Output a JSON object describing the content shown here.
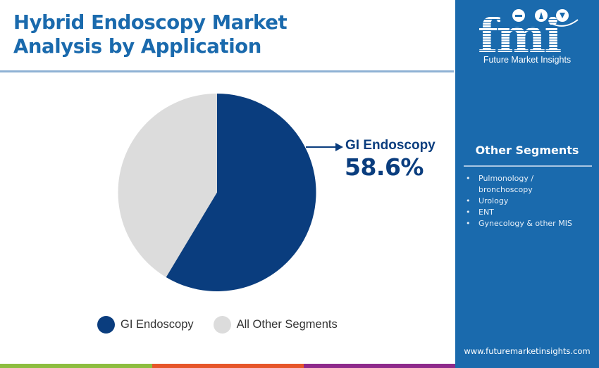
{
  "header": {
    "title_line1": "Hybrid Endoscopy Market",
    "title_line2": "Analysis by Application"
  },
  "callout": {
    "label": "GI Endoscopy",
    "value": "58.6%"
  },
  "legend": [
    {
      "label": "GI Endoscopy",
      "color": "#0a3d7e"
    },
    {
      "label": "All Other Segments",
      "color": "#dcdcdc"
    }
  ],
  "sidebar": {
    "logo_text": "fmi",
    "logo_subtitle": "Future Market Insights",
    "other_segments_title": "Other Segments",
    "other_segments": [
      "Pulmonology / bronchoscopy",
      "Urology",
      "ENT",
      "Gynecology & other MIS"
    ],
    "website": "www.futuremarketinsights.com"
  },
  "colors": {
    "title": "#1a6aad",
    "primary_slice": "#0a3d7e",
    "secondary_slice": "#dcdcdc",
    "sidebar_bg": "#1a6aad",
    "strip": [
      "#8dbd3f",
      "#e6562a",
      "#8e2a8b"
    ]
  },
  "chart_data": {
    "type": "pie",
    "title": "Hybrid Endoscopy Market Analysis by Application",
    "categories": [
      "GI Endoscopy",
      "All Other Segments"
    ],
    "values": [
      58.6,
      41.4
    ],
    "colors": [
      "#0a3d7e",
      "#dcdcdc"
    ],
    "annotations": [
      {
        "target": "GI Endoscopy",
        "text": "GI Endoscopy 58.6%"
      }
    ],
    "legend_position": "bottom"
  }
}
